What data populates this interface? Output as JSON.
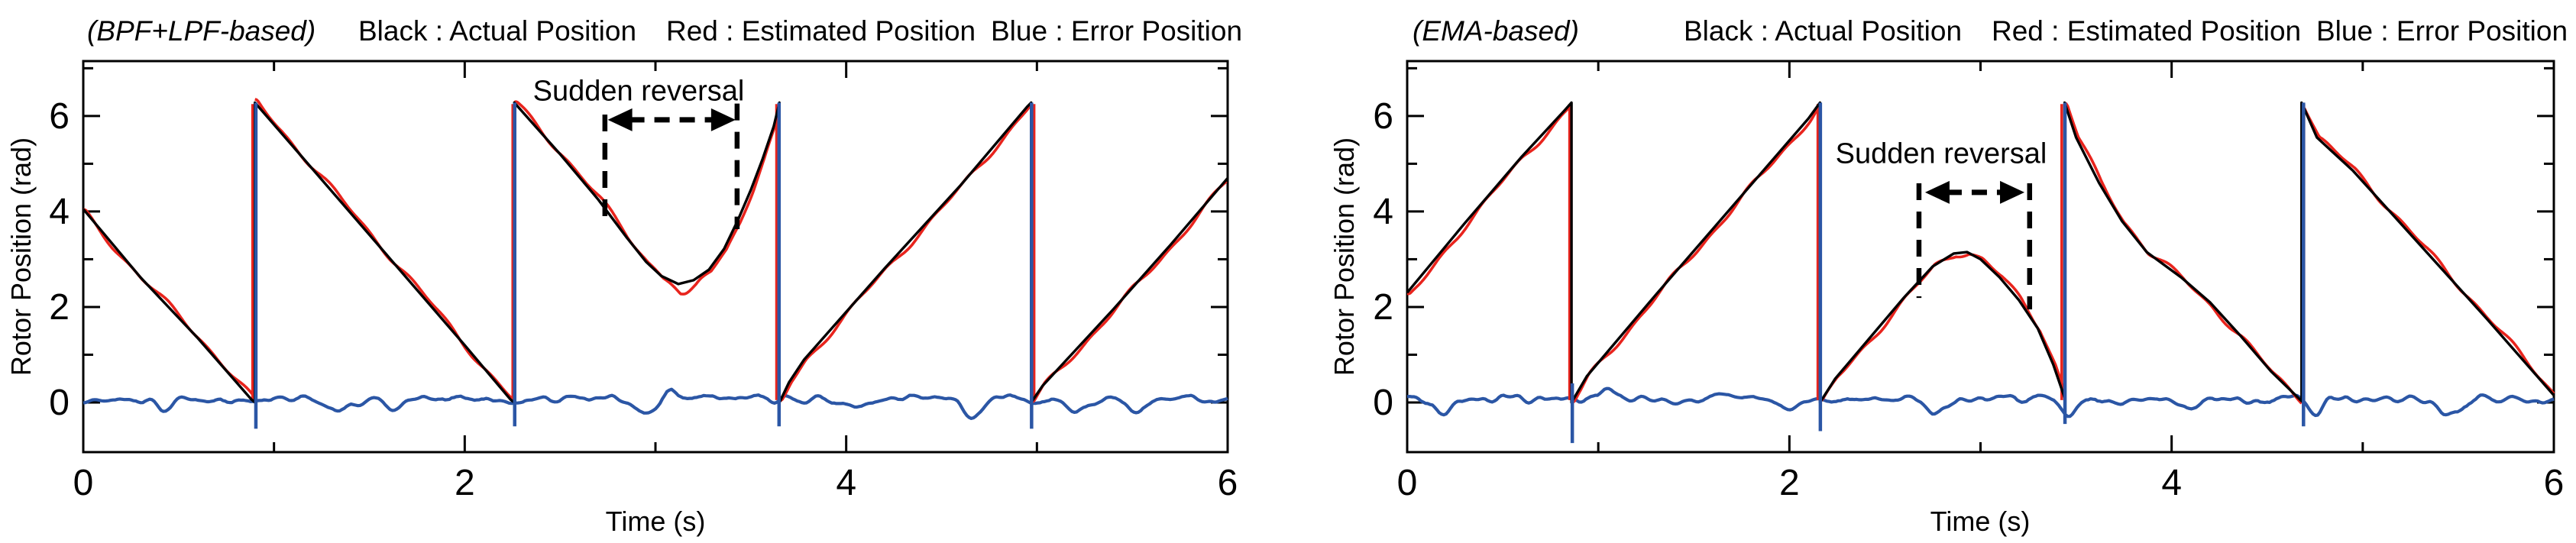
{
  "figure": {
    "background": "#ffffff"
  },
  "charts": [
    {
      "id": "bpf-lpf",
      "variant_label": "(BPF+LPF-based)",
      "legend": [
        "Black : Actual Position",
        "Red : Estimated Position",
        "Blue : Error Position"
      ],
      "xlabel": "Time (s)",
      "ylabel": "Rotor Position (rad)",
      "annotation_text": "Sudden reversal",
      "colors": {
        "actual": "#000000",
        "estimated": "#e8241d",
        "error": "#2b56a5"
      },
      "chart_data": {
        "type": "line",
        "title": "(BPF+LPF-based)",
        "xlabel": "Time (s)",
        "ylabel": "Rotor Position (rad)",
        "xlim": [
          0,
          6
        ],
        "ylim": [
          -1.04,
          7.15
        ],
        "xticks": [
          0,
          2,
          4,
          6
        ],
        "xminor": [
          1,
          3,
          5
        ],
        "yticks": [
          0,
          2,
          4,
          6
        ],
        "yminor": [
          1,
          3,
          5,
          7
        ],
        "grid": false,
        "legend_position": "top",
        "series": [
          {
            "name": "Actual Position",
            "color": "#000000",
            "points": [
              [
                0,
                4.05
              ],
              [
                0.3,
                2.62
              ],
              [
                0.6,
                1.35
              ],
              [
                0.88,
                0.07
              ],
              [
                0.9,
                0
              ],
              [
                0.9,
                6.28
              ],
              [
                1.2,
                4.9
              ],
              [
                1.6,
                3.05
              ],
              [
                2.0,
                1.2
              ],
              [
                2.24,
                0.06
              ],
              [
                2.26,
                0
              ],
              [
                2.26,
                6.28
              ],
              [
                2.5,
                5.2
              ],
              [
                2.7,
                4.25
              ],
              [
                2.85,
                3.45
              ],
              [
                2.95,
                2.95
              ],
              [
                3.03,
                2.65
              ],
              [
                3.12,
                2.48
              ],
              [
                3.2,
                2.56
              ],
              [
                3.28,
                2.78
              ],
              [
                3.36,
                3.22
              ],
              [
                3.43,
                3.8
              ],
              [
                3.5,
                4.45
              ],
              [
                3.56,
                5.08
              ],
              [
                3.62,
                5.78
              ],
              [
                3.65,
                6.28
              ],
              [
                3.65,
                0
              ],
              [
                3.7,
                0.42
              ],
              [
                3.78,
                0.9
              ],
              [
                4.2,
                2.8
              ],
              [
                4.6,
                4.55
              ],
              [
                4.95,
                6.2
              ],
              [
                4.97,
                6.28
              ],
              [
                4.97,
                0
              ],
              [
                5.03,
                0.35
              ],
              [
                5.4,
                1.95
              ],
              [
                5.7,
                3.3
              ],
              [
                6.0,
                4.7
              ]
            ]
          },
          {
            "name": "Estimated Position",
            "color": "#e8241d",
            "base": "Actual Position",
            "wiggle": {
              "lag": 0.012,
              "amp": 0.05,
              "period": 0.46,
              "phase": 2.0,
              "amp2": 0.034,
              "period2": 0.21,
              "phase2": 0.7
            },
            "dips": [
              {
                "t": 3.16,
                "d": -0.3,
                "w": 0.045
              },
              {
                "t": 0.08,
                "d": -0.09,
                "w": 0.18
              },
              {
                "t": 2.1,
                "d": -0.05,
                "w": 0.1
              }
            ],
            "wrap_times": [
              0.888,
              2.252,
              3.635,
              4.985
            ]
          },
          {
            "name": "Error Position",
            "color": "#2b56a5",
            "baseline": 0.07,
            "noise_amp": 0.34,
            "seed": 11,
            "dips": [
              {
                "t": 0.42,
                "d": -0.22,
                "w": 0.04
              },
              {
                "t": 1.33,
                "d": -0.28,
                "w": 0.05
              },
              {
                "t": 1.62,
                "d": -0.2,
                "w": 0.04
              },
              {
                "t": 2.95,
                "d": -0.3,
                "w": 0.06
              },
              {
                "t": 3.08,
                "d": 0.22,
                "w": 0.03
              },
              {
                "t": 4.05,
                "d": -0.2,
                "w": 0.05
              },
              {
                "t": 4.66,
                "d": -0.35,
                "w": 0.05
              },
              {
                "t": 5.2,
                "d": -0.22,
                "w": 0.04
              },
              {
                "t": 5.52,
                "d": -0.3,
                "w": 0.05
              }
            ],
            "spikes": [
              {
                "t": 0.905,
                "v0": -0.55,
                "v1": 6.28
              },
              {
                "t": 2.262,
                "v0": -0.5,
                "v1": 6.28
              },
              {
                "t": 3.648,
                "v0": -0.5,
                "v1": 6.28
              },
              {
                "t": 4.972,
                "v0": -0.55,
                "v1": 6.28
              }
            ]
          }
        ],
        "reversal_annotation": {
          "label_t": 2.91,
          "label_v": 6.51,
          "arrow": {
            "t1": 2.75,
            "t2": 3.42,
            "v": 5.92
          },
          "dashed_lines": [
            {
              "t": 2.735,
              "v0": 6.03,
              "v1": 3.74
            },
            {
              "t": 3.428,
              "v0": 6.26,
              "v1": 3.63
            }
          ]
        }
      }
    },
    {
      "id": "ema",
      "variant_label": "(EMA-based)",
      "legend": [
        "Black : Actual Position",
        "Red : Estimated Position",
        "Blue : Error Position"
      ],
      "xlabel": "Time (s)",
      "ylabel": "Rotor Position (rad)",
      "annotation_text": "Sudden reversal",
      "colors": {
        "actual": "#000000",
        "estimated": "#e8241d",
        "error": "#2b56a5"
      },
      "chart_data": {
        "type": "line",
        "title": "(EMA-based)",
        "xlabel": "Time (s)",
        "ylabel": "Rotor Position (rad)",
        "xlim": [
          0,
          6
        ],
        "ylim": [
          -1.04,
          7.15
        ],
        "xticks": [
          0,
          2,
          4,
          6
        ],
        "xminor": [
          1,
          3,
          5
        ],
        "yticks": [
          0,
          2,
          4,
          6
        ],
        "yminor": [
          1,
          3,
          5,
          7
        ],
        "grid": false,
        "legend_position": "top",
        "series": [
          {
            "name": "Actual Position",
            "color": "#000000",
            "points": [
              [
                0,
                2.3
              ],
              [
                0.3,
                3.75
              ],
              [
                0.6,
                5.15
              ],
              [
                0.82,
                6.1
              ],
              [
                0.86,
                6.28
              ],
              [
                0.86,
                0
              ],
              [
                0.94,
                0.55
              ],
              [
                1.3,
                2.25
              ],
              [
                1.7,
                4.1
              ],
              [
                2.1,
                5.95
              ],
              [
                2.16,
                6.28
              ],
              [
                2.16,
                0
              ],
              [
                2.24,
                0.5
              ],
              [
                2.6,
                2.2
              ],
              [
                2.75,
                2.85
              ],
              [
                2.86,
                3.12
              ],
              [
                2.93,
                3.15
              ],
              [
                3.0,
                3.0
              ],
              [
                3.1,
                2.62
              ],
              [
                3.2,
                2.15
              ],
              [
                3.3,
                1.55
              ],
              [
                3.38,
                0.8
              ],
              [
                3.44,
                0.1
              ],
              [
                3.44,
                6.28
              ],
              [
                3.5,
                5.55
              ],
              [
                3.62,
                4.6
              ],
              [
                3.74,
                3.8
              ],
              [
                3.87,
                3.15
              ],
              [
                4.05,
                2.62
              ],
              [
                4.2,
                2.1
              ],
              [
                4.36,
                1.4
              ],
              [
                4.52,
                0.65
              ],
              [
                4.68,
                0.03
              ],
              [
                4.68,
                6.28
              ],
              [
                4.76,
                5.55
              ],
              [
                4.95,
                4.85
              ],
              [
                5.3,
                3.3
              ],
              [
                5.65,
                1.75
              ],
              [
                6.0,
                0.15
              ]
            ]
          },
          {
            "name": "Estimated Position",
            "color": "#e8241d",
            "base": "Actual Position",
            "wiggle": {
              "lag": 0.012,
              "amp": 0.05,
              "period": 0.44,
              "phase": 0.8,
              "amp2": 0.034,
              "period2": 0.2,
              "phase2": 1.9
            },
            "dips": [
              {
                "t": 4.3,
                "d": -0.08,
                "w": 0.2
              },
              {
                "t": 0.05,
                "d": -0.1,
                "w": 0.1
              }
            ],
            "wrap_times": [
              0.85,
              2.149,
              3.425,
              4.692
            ]
          },
          {
            "name": "Error Position",
            "color": "#2b56a5",
            "baseline": 0.07,
            "noise_amp": 0.34,
            "seed": 29,
            "dips": [
              {
                "t": 0.18,
                "d": -0.28,
                "w": 0.05
              },
              {
                "t": 1.05,
                "d": 0.18,
                "w": 0.04
              },
              {
                "t": 2.0,
                "d": -0.25,
                "w": 0.05
              },
              {
                "t": 2.78,
                "d": -0.28,
                "w": 0.06
              },
              {
                "t": 3.46,
                "d": -0.3,
                "w": 0.03
              },
              {
                "t": 4.1,
                "d": -0.2,
                "w": 0.05
              },
              {
                "t": 4.75,
                "d": -0.28,
                "w": 0.04
              },
              {
                "t": 5.45,
                "d": -0.33,
                "w": 0.06
              }
            ],
            "spikes": [
              {
                "t": 0.864,
                "v0": -0.85,
                "v1": 0.4
              },
              {
                "t": 2.162,
                "v0": -0.6,
                "v1": 6.28
              },
              {
                "t": 3.442,
                "v0": -0.45,
                "v1": 6.28
              },
              {
                "t": 4.69,
                "v0": -0.5,
                "v1": 6.28
              }
            ]
          }
        ],
        "reversal_annotation": {
          "label_t": 2.79,
          "label_v": 5.2,
          "arrow": {
            "t1": 2.71,
            "t2": 3.23,
            "v": 4.4
          },
          "dashed_lines": [
            {
              "t": 2.678,
              "v0": 4.59,
              "v1": 2.19
            },
            {
              "t": 3.257,
              "v0": 4.59,
              "v1": 1.95
            }
          ]
        }
      }
    }
  ]
}
